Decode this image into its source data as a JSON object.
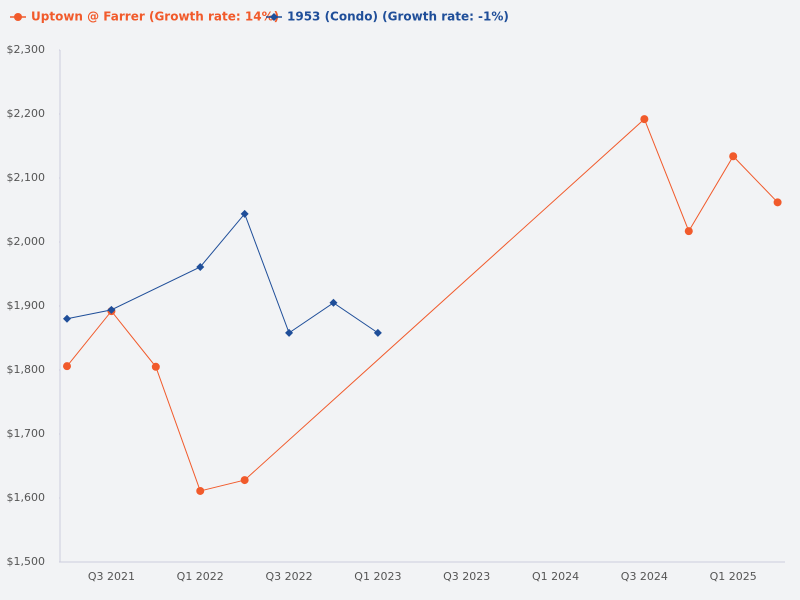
{
  "chart_data": {
    "type": "line",
    "categories": [
      null,
      "Q3 2021",
      null,
      "Q1 2022",
      null,
      "Q3 2022",
      null,
      "Q1 2023",
      null,
      "Q3 2023",
      null,
      "Q1 2024",
      null,
      "Q3 2024",
      null,
      "Q1 2025",
      null
    ],
    "series": [
      {
        "name": "Uptown @ Farrer (Growth rate: 14%)",
        "color": "#f15a2b",
        "marker": "circle",
        "values": [
          1806,
          1892,
          1805,
          1611,
          1628,
          null,
          null,
          null,
          null,
          null,
          null,
          null,
          null,
          2192,
          2017,
          2134,
          2062
        ]
      },
      {
        "name": "1953 (Condo) (Growth rate: -1%)",
        "color": "#1f4e99",
        "marker": "diamond",
        "values": [
          1880,
          1894,
          null,
          1961,
          2044,
          1858,
          1905,
          1858,
          null,
          null,
          null,
          null,
          null,
          null,
          null,
          null,
          null
        ]
      }
    ],
    "ylim": [
      1500,
      2300
    ],
    "yticks": [
      {
        "value": 1500,
        "label": "$1,500"
      },
      {
        "value": 1600,
        "label": "$1,600"
      },
      {
        "value": 1700,
        "label": "$1,700"
      },
      {
        "value": 1800,
        "label": "$1,800"
      },
      {
        "value": 1900,
        "label": "$1,900"
      },
      {
        "value": 2000,
        "label": "$2,000"
      },
      {
        "value": 2100,
        "label": "$2,100"
      },
      {
        "value": 2200,
        "label": "$2,200"
      },
      {
        "value": 2300,
        "label": "$2,300"
      }
    ],
    "span_gaps": true,
    "grid": false,
    "legend": "top-left"
  }
}
